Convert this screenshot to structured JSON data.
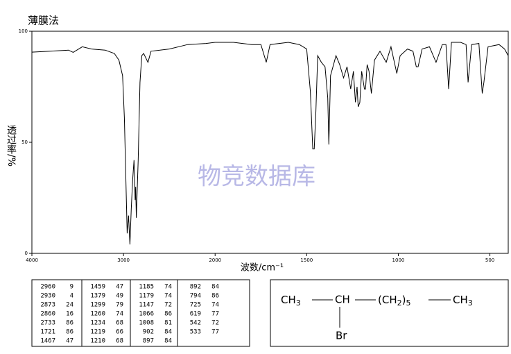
{
  "chart_data": {
    "type": "line",
    "title": "薄膜法",
    "xlabel": "波数/cm⁻¹",
    "ylabel": "透过率/%",
    "watermark": "物竞数据库",
    "xlim": [
      4000,
      400
    ],
    "x_break": 2000,
    "x_break_factor": 2,
    "xticks": [
      4000,
      3000,
      2000,
      1500,
      1000,
      500
    ],
    "ylim": [
      0,
      100
    ],
    "yticks": [
      0,
      50,
      100
    ],
    "color": "#000000",
    "x": [
      4000,
      3800,
      3600,
      3550,
      3450,
      3350,
      3200,
      3100,
      3050,
      3010,
      2990,
      2970,
      2960,
      2945,
      2930,
      2915,
      2900,
      2885,
      2873,
      2867,
      2860,
      2840,
      2820,
      2800,
      2780,
      2733,
      2700,
      2500,
      2300,
      2100,
      2000,
      1900,
      1800,
      1750,
      1721,
      1700,
      1600,
      1540,
      1500,
      1480,
      1467,
      1459,
      1450,
      1440,
      1420,
      1400,
      1385,
      1379,
      1370,
      1340,
      1320,
      1299,
      1280,
      1260,
      1245,
      1234,
      1225,
      1219,
      1210,
      1200,
      1185,
      1179,
      1170,
      1160,
      1147,
      1130,
      1100,
      1066,
      1040,
      1008,
      990,
      950,
      920,
      902,
      897,
      892,
      870,
      830,
      794,
      760,
      740,
      725,
      710,
      660,
      630,
      619,
      600,
      560,
      542,
      533,
      510,
      450,
      420,
      400
    ],
    "values": [
      90.6,
      91,
      91.5,
      90.5,
      93,
      92,
      91.5,
      90,
      87,
      80,
      61,
      26,
      9,
      17,
      4,
      20,
      33,
      42,
      24,
      30,
      16,
      42,
      77,
      89,
      90,
      86,
      91,
      92,
      94,
      94.5,
      95,
      95,
      94,
      94,
      86,
      94,
      95,
      94,
      92,
      73,
      47,
      47,
      64,
      89,
      86,
      84,
      70,
      49,
      80,
      89,
      85,
      79,
      84,
      74,
      82,
      68,
      75,
      66,
      68,
      82,
      74,
      74,
      85,
      82,
      72,
      87,
      91,
      86,
      93,
      81,
      89,
      92,
      91,
      84,
      84,
      84,
      92,
      93,
      86,
      94,
      94,
      74,
      95,
      95,
      94,
      77,
      94,
      94.5,
      72,
      77,
      93,
      94,
      92,
      89
    ]
  },
  "peak_table": {
    "columns": [
      [
        [
          2960,
          9
        ],
        [
          2930,
          4
        ],
        [
          2873,
          24
        ],
        [
          2860,
          16
        ],
        [
          2733,
          86
        ],
        [
          1721,
          86
        ],
        [
          1467,
          47
        ]
      ],
      [
        [
          1459,
          47
        ],
        [
          1379,
          49
        ],
        [
          1299,
          79
        ],
        [
          1260,
          74
        ],
        [
          1234,
          68
        ],
        [
          1219,
          66
        ],
        [
          1210,
          68
        ]
      ],
      [
        [
          1185,
          74
        ],
        [
          1179,
          74
        ],
        [
          1147,
          72
        ],
        [
          1066,
          86
        ],
        [
          1008,
          81
        ],
        [
          902,
          84
        ],
        [
          897,
          84
        ]
      ],
      [
        [
          892,
          84
        ],
        [
          794,
          86
        ],
        [
          725,
          74
        ],
        [
          619,
          77
        ],
        [
          542,
          72
        ],
        [
          533,
          77
        ]
      ]
    ]
  },
  "structure": {
    "g1": "CH",
    "s1": "3",
    "g2": "CH",
    "g3": "(CH",
    "s3": "2",
    "g3b": ")",
    "s3b": "5",
    "g4": "CH",
    "s4": "3",
    "sub_group": "Br"
  }
}
